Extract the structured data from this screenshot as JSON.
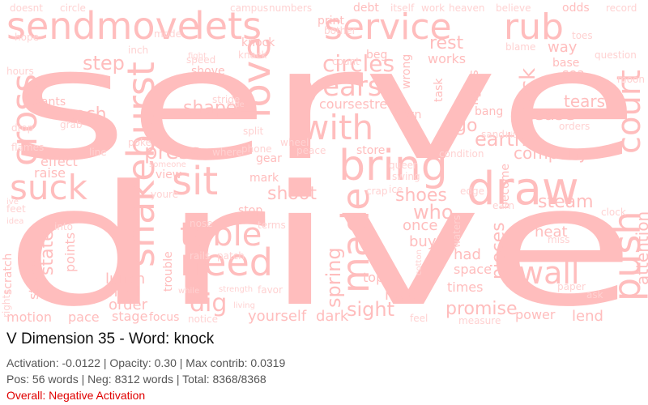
{
  "colors": {
    "word": "#ffbdbd",
    "word_small": "#ffd2d2",
    "negative": "#e00000",
    "stat_text": "#555555",
    "title_text": "#111111"
  },
  "caption": {
    "title": "V Dimension 35 - Word: knock",
    "stats_line1": "Activation: -0.0122 | Opacity: 0.30 | Max contrib: 0.0319",
    "stats_line2": "Pos: 56 words | Neg: 8312 words | Total: 8368/8368",
    "overall": "Overall: Negative Activation"
  },
  "cloud": {
    "words": [
      {
        "text": "serve"
      },
      {
        "text": "drive"
      },
      {
        "text": "sendmove"
      },
      {
        "text": "lets"
      },
      {
        "text": "service"
      },
      {
        "text": "rub"
      },
      {
        "text": "bring"
      },
      {
        "text": "draw"
      },
      {
        "text": "sit"
      },
      {
        "text": "with"
      },
      {
        "text": "love"
      },
      {
        "text": "years"
      },
      {
        "text": "shakeburst"
      },
      {
        "text": "cross"
      },
      {
        "text": "suck"
      },
      {
        "text": "need"
      },
      {
        "text": "table"
      },
      {
        "text": "made"
      },
      {
        "text": "push"
      },
      {
        "text": "court"
      },
      {
        "text": "wall"
      },
      {
        "text": "dig"
      },
      {
        "text": "shape"
      },
      {
        "text": "press"
      },
      {
        "text": "reach"
      },
      {
        "text": "step"
      },
      {
        "text": "earth"
      },
      {
        "text": "company"
      },
      {
        "text": "steam"
      },
      {
        "text": "attention"
      },
      {
        "text": "circles"
      },
      {
        "text": "coursestreet"
      },
      {
        "text": "track"
      },
      {
        "text": "ease"
      },
      {
        "text": "tears"
      },
      {
        "text": "rest"
      },
      {
        "text": "works"
      },
      {
        "text": "shoot"
      },
      {
        "text": "shoes"
      },
      {
        "text": "who"
      },
      {
        "text": "sight"
      },
      {
        "text": "promise"
      },
      {
        "text": "spring"
      },
      {
        "text": "pieces"
      },
      {
        "text": "heat"
      },
      {
        "text": "lunch"
      },
      {
        "text": "heel"
      },
      {
        "text": "order"
      },
      {
        "text": "stage"
      },
      {
        "text": "pace"
      },
      {
        "text": "motion"
      },
      {
        "text": "power"
      },
      {
        "text": "lend"
      },
      {
        "text": "times"
      },
      {
        "text": "had"
      },
      {
        "text": "space"
      },
      {
        "text": "once"
      },
      {
        "text": "buy"
      },
      {
        "text": "road"
      },
      {
        "text": "top"
      },
      {
        "text": "feel"
      },
      {
        "text": "yourself"
      },
      {
        "text": "dark"
      },
      {
        "text": "effect"
      },
      {
        "text": "raise"
      },
      {
        "text": "state"
      },
      {
        "text": "straws"
      },
      {
        "text": "points"
      },
      {
        "text": "into"
      },
      {
        "text": "scratch"
      },
      {
        "text": "rights"
      },
      {
        "text": "pants"
      },
      {
        "text": "hours"
      },
      {
        "text": "knock"
      },
      {
        "text": "beg"
      },
      {
        "text": "print"
      },
      {
        "text": "debt"
      },
      {
        "text": "doesnt"
      },
      {
        "text": "circle"
      },
      {
        "text": "shove"
      },
      {
        "text": "speed"
      },
      {
        "text": "mode"
      },
      {
        "text": "inch"
      },
      {
        "text": "stride"
      },
      {
        "text": "gear"
      },
      {
        "text": "mark"
      },
      {
        "text": "view"
      },
      {
        "text": "youre"
      },
      {
        "text": "poke"
      },
      {
        "text": "someone"
      },
      {
        "text": "stop"
      },
      {
        "text": "terms"
      },
      {
        "text": "nose"
      },
      {
        "text": "rails"
      },
      {
        "text": "patch"
      },
      {
        "text": "trouble"
      },
      {
        "text": "favor"
      },
      {
        "text": "store"
      },
      {
        "text": "become"
      },
      {
        "text": "clock"
      },
      {
        "text": "miss"
      },
      {
        "text": "base"
      },
      {
        "text": "sea"
      },
      {
        "text": "way"
      },
      {
        "text": "odds"
      },
      {
        "text": "record"
      },
      {
        "text": "heaven"
      },
      {
        "text": "believe"
      },
      {
        "text": "go"
      },
      {
        "text": "focus"
      },
      {
        "text": "notice"
      },
      {
        "text": "town"
      },
      {
        "text": "peace"
      },
      {
        "text": "task"
      },
      {
        "text": "wrong"
      },
      {
        "text": "lights"
      },
      {
        "text": "bang"
      },
      {
        "text": "sand"
      },
      {
        "text": "orders"
      },
      {
        "text": "condition"
      },
      {
        "text": "ask"
      },
      {
        "text": "paper"
      },
      {
        "text": "measure"
      },
      {
        "text": "split"
      },
      {
        "text": "grab"
      },
      {
        "text": "drop"
      },
      {
        "text": "flames"
      },
      {
        "text": "line"
      },
      {
        "text": "where"
      },
      {
        "text": "phone"
      },
      {
        "text": "wheel"
      },
      {
        "text": "hope"
      },
      {
        "text": "campus"
      },
      {
        "text": "numbers"
      },
      {
        "text": "itself"
      },
      {
        "text": "work"
      },
      {
        "text": "bother"
      },
      {
        "text": "count"
      },
      {
        "text": "blame"
      },
      {
        "text": "question"
      },
      {
        "text": "moon"
      },
      {
        "text": "toes"
      },
      {
        "text": "knack"
      },
      {
        "text": "idea"
      },
      {
        "text": "feet"
      },
      {
        "text": "ive"
      },
      {
        "text": "crap"
      },
      {
        "text": "ice"
      },
      {
        "text": "edge"
      },
      {
        "text": "swing"
      },
      {
        "text": "queer"
      },
      {
        "text": "earn"
      },
      {
        "text": "waters"
      },
      {
        "text": "cotton"
      },
      {
        "text": "fight"
      },
      {
        "text": "hit"
      },
      {
        "text": "hide"
      },
      {
        "text": "living"
      },
      {
        "text": "while"
      },
      {
        "text": "strength"
      }
    ]
  }
}
